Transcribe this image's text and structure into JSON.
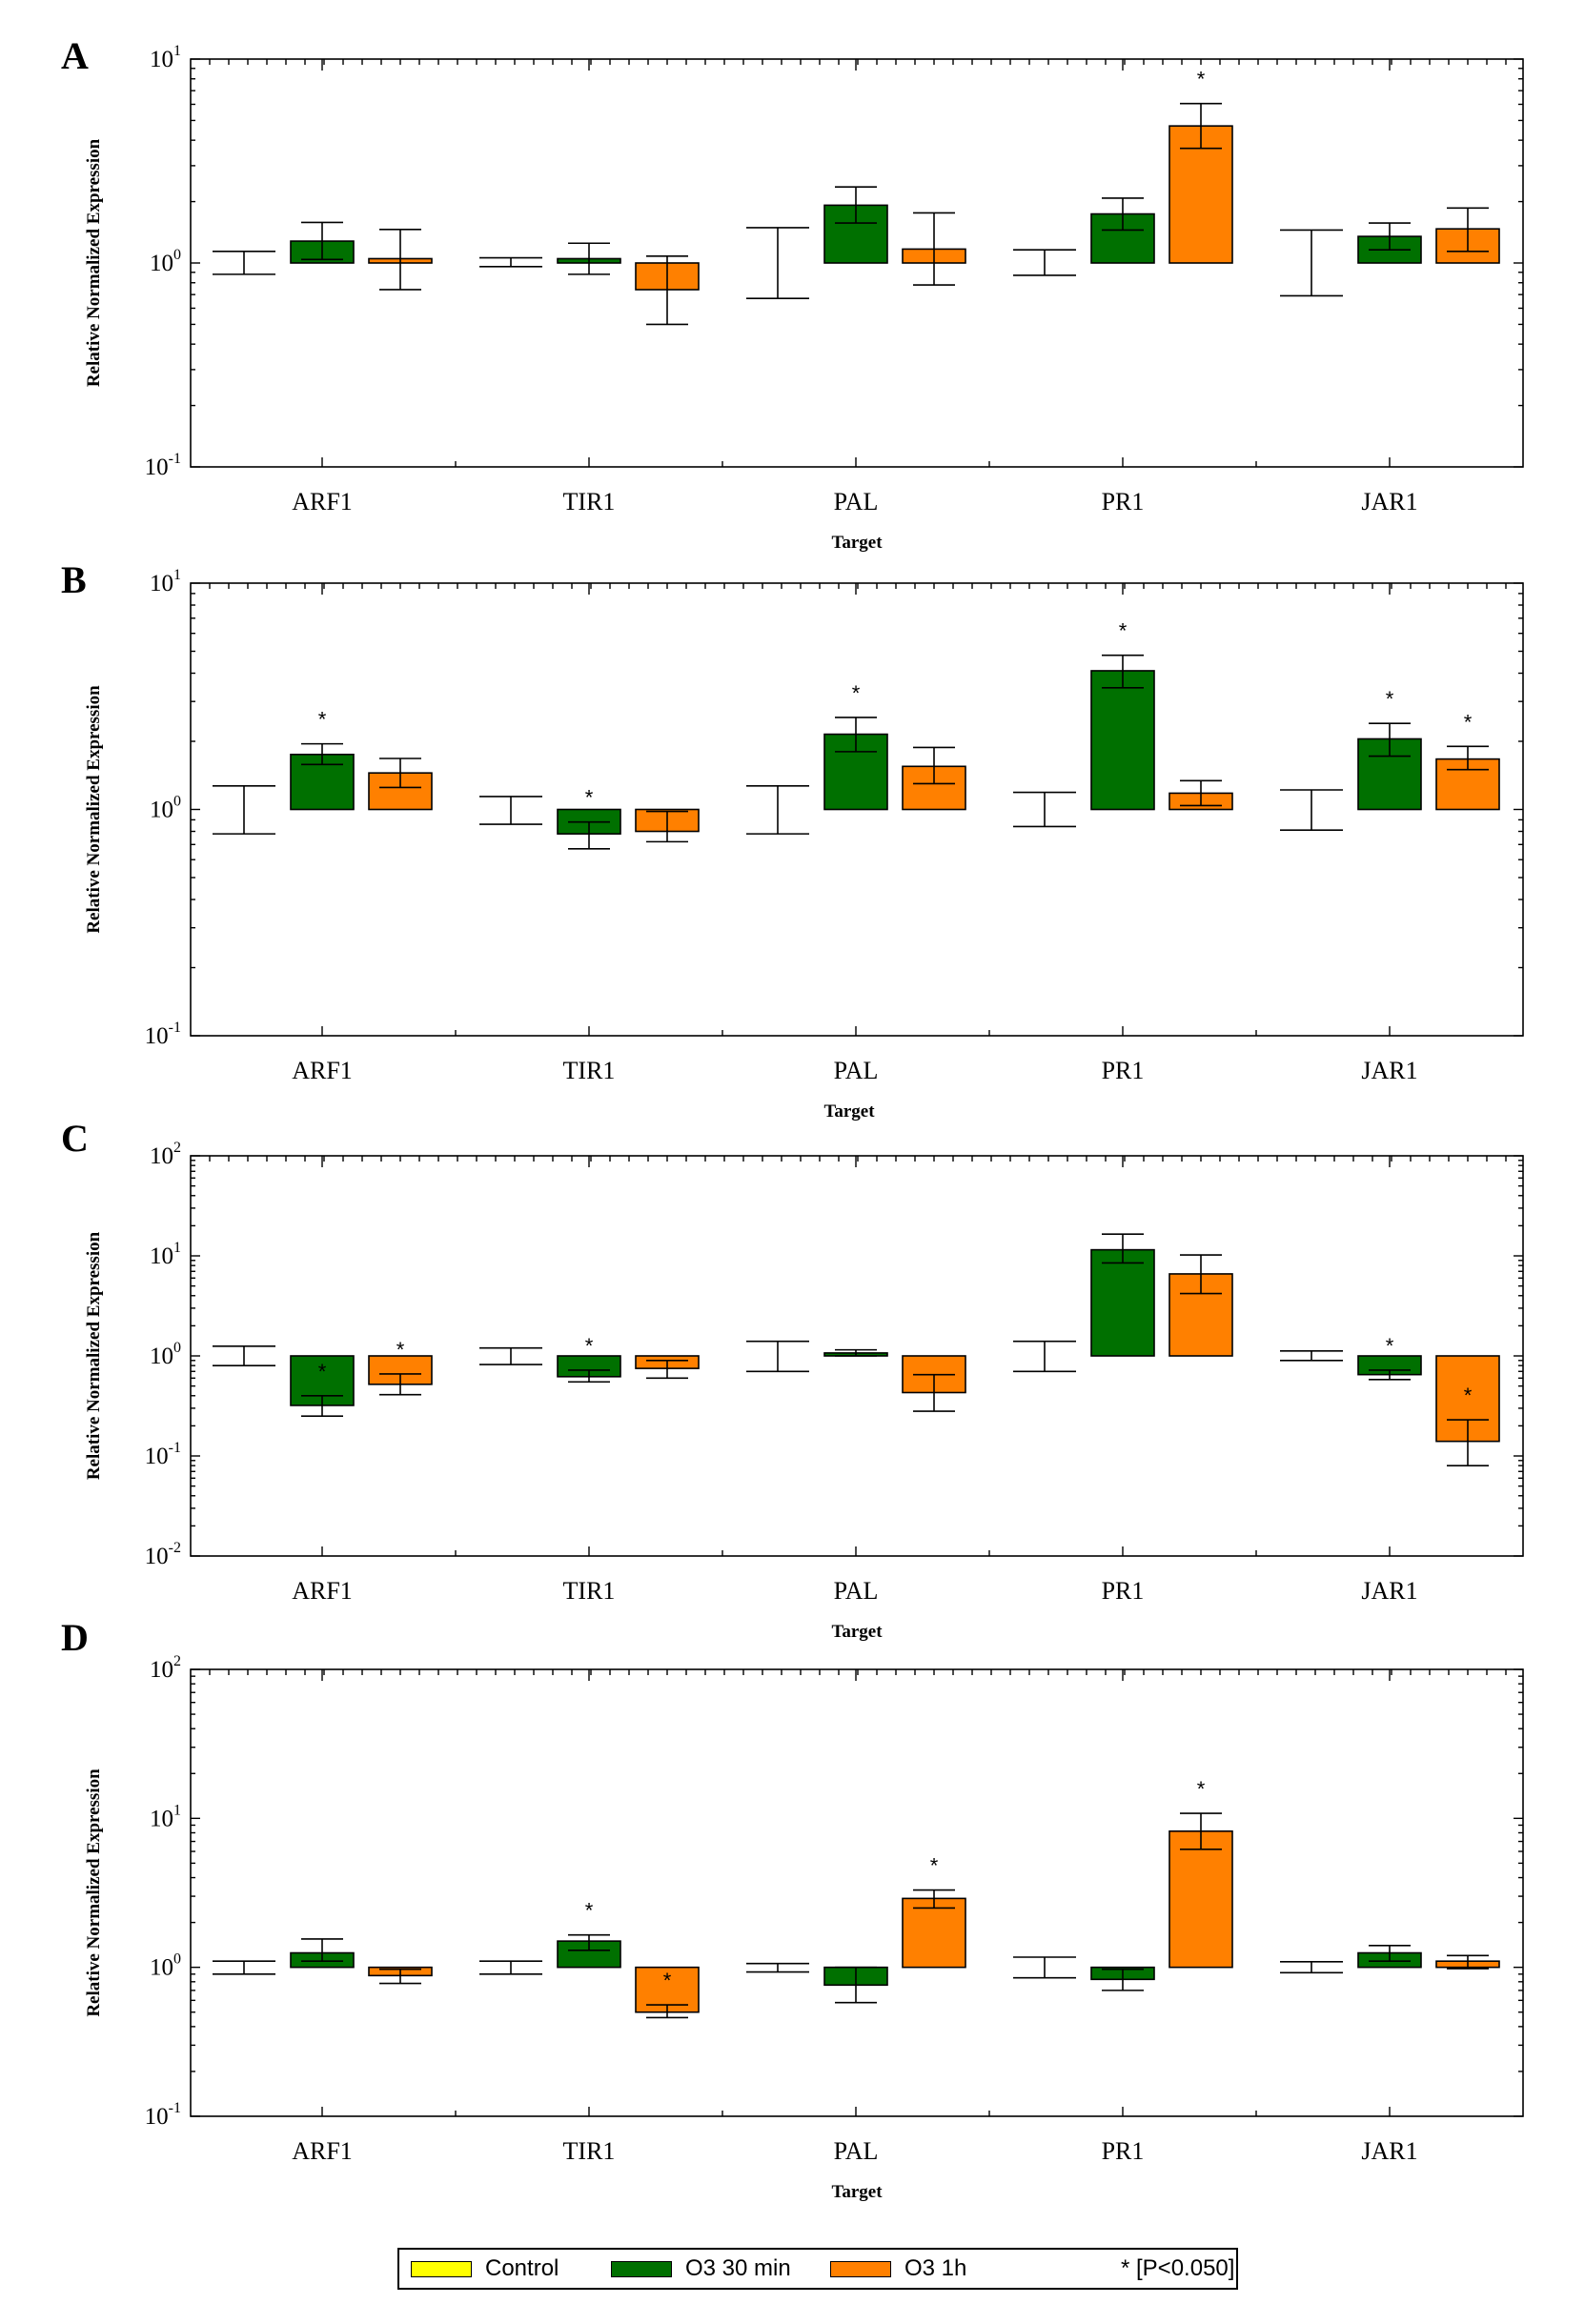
{
  "chart_data": [
    {
      "type": "boxplot",
      "panel": "A",
      "categories": [
        "ARF1",
        "TIR1",
        "PAL",
        "PR1",
        "JAR1"
      ],
      "xlabel": "Target",
      "ylabel": "Relative Normalized Expression",
      "yscale": "log",
      "ylim": [
        0.1,
        10
      ],
      "ytick_exponents": [
        -1,
        0,
        1
      ],
      "series": [
        {
          "name": "Control",
          "color": "#ffff00",
          "values": [
            {
              "value": 1.0,
              "err_low": 0.88,
              "err_high": 1.14,
              "star": false
            },
            {
              "value": 1.0,
              "err_low": 0.96,
              "err_high": 1.06,
              "star": false
            },
            {
              "value": 1.0,
              "err_low": 0.67,
              "err_high": 1.49,
              "star": false
            },
            {
              "value": 1.0,
              "err_low": 0.87,
              "err_high": 1.16,
              "star": false
            },
            {
              "value": 1.0,
              "err_low": 0.69,
              "err_high": 1.45,
              "star": false
            }
          ]
        },
        {
          "name": "O3 30 min",
          "color": "#007000",
          "values": [
            {
              "value": 1.28,
              "err_low": 1.04,
              "err_high": 1.58,
              "star": false
            },
            {
              "value": 1.05,
              "err_low": 0.88,
              "err_high": 1.25,
              "star": false
            },
            {
              "value": 1.92,
              "err_low": 1.57,
              "err_high": 2.36,
              "star": false
            },
            {
              "value": 1.74,
              "err_low": 1.45,
              "err_high": 2.08,
              "star": false
            },
            {
              "value": 1.35,
              "err_low": 1.16,
              "err_high": 1.57,
              "star": false
            }
          ]
        },
        {
          "name": "O3 1h",
          "color": "#ff8000",
          "values": [
            {
              "value": 1.05,
              "err_low": 0.74,
              "err_high": 1.46,
              "star": false
            },
            {
              "value": 0.74,
              "err_low": 0.5,
              "err_high": 1.08,
              "star": false
            },
            {
              "value": 1.17,
              "err_low": 0.78,
              "err_high": 1.76,
              "star": false
            },
            {
              "value": 4.7,
              "err_low": 3.65,
              "err_high": 6.05,
              "star": true
            },
            {
              "value": 1.47,
              "err_low": 1.14,
              "err_high": 1.86,
              "star": false
            }
          ]
        }
      ]
    },
    {
      "type": "boxplot",
      "panel": "B",
      "categories": [
        "ARF1",
        "TIR1",
        "PAL",
        "PR1",
        "JAR1"
      ],
      "xlabel": "Target",
      "ylabel": "Relative Normalized Expression",
      "yscale": "log",
      "ylim": [
        0.1,
        10
      ],
      "ytick_exponents": [
        -1,
        0,
        1
      ],
      "series": [
        {
          "name": "Control",
          "color": "#ffff00",
          "values": [
            {
              "value": 1.0,
              "err_low": 0.78,
              "err_high": 1.27,
              "star": false
            },
            {
              "value": 1.0,
              "err_low": 0.86,
              "err_high": 1.14,
              "star": false
            },
            {
              "value": 1.0,
              "err_low": 0.78,
              "err_high": 1.27,
              "star": false
            },
            {
              "value": 1.0,
              "err_low": 0.84,
              "err_high": 1.19,
              "star": false
            },
            {
              "value": 1.0,
              "err_low": 0.81,
              "err_high": 1.22,
              "star": false
            }
          ]
        },
        {
          "name": "O3 30 min",
          "color": "#007000",
          "values": [
            {
              "value": 1.75,
              "err_low": 1.58,
              "err_high": 1.95,
              "star": true
            },
            {
              "value": 0.78,
              "err_low": 0.67,
              "err_high": 0.88,
              "star": true
            },
            {
              "value": 2.15,
              "err_low": 1.8,
              "err_high": 2.55,
              "star": true
            },
            {
              "value": 4.1,
              "err_low": 3.45,
              "err_high": 4.8,
              "star": true
            },
            {
              "value": 2.05,
              "err_low": 1.72,
              "err_high": 2.4,
              "star": true
            }
          ]
        },
        {
          "name": "O3 1h",
          "color": "#ff8000",
          "values": [
            {
              "value": 1.45,
              "err_low": 1.25,
              "err_high": 1.68,
              "star": false
            },
            {
              "value": 0.8,
              "err_low": 0.72,
              "err_high": 0.98,
              "star": false
            },
            {
              "value": 1.55,
              "err_low": 1.3,
              "err_high": 1.88,
              "star": false
            },
            {
              "value": 1.18,
              "err_low": 1.04,
              "err_high": 1.34,
              "star": false
            },
            {
              "value": 1.67,
              "err_low": 1.5,
              "err_high": 1.9,
              "star": true
            }
          ]
        }
      ]
    },
    {
      "type": "boxplot",
      "panel": "C",
      "categories": [
        "ARF1",
        "TIR1",
        "PAL",
        "PR1",
        "JAR1"
      ],
      "xlabel": "Target",
      "ylabel": "Relative Normalized Expression",
      "yscale": "log",
      "ylim": [
        0.01,
        100
      ],
      "ytick_exponents": [
        -2,
        -1,
        0,
        1,
        2
      ],
      "series": [
        {
          "name": "Control",
          "color": "#ffff00",
          "values": [
            {
              "value": 1.0,
              "err_low": 0.8,
              "err_high": 1.25,
              "star": false
            },
            {
              "value": 1.0,
              "err_low": 0.82,
              "err_high": 1.2,
              "star": false
            },
            {
              "value": 1.0,
              "err_low": 0.7,
              "err_high": 1.4,
              "star": false
            },
            {
              "value": 1.0,
              "err_low": 0.7,
              "err_high": 1.4,
              "star": false
            },
            {
              "value": 1.0,
              "err_low": 0.9,
              "err_high": 1.12,
              "star": false
            }
          ]
        },
        {
          "name": "O3 30 min",
          "color": "#007000",
          "values": [
            {
              "value": 0.32,
              "err_low": 0.25,
              "err_high": 0.4,
              "star": true
            },
            {
              "value": 0.62,
              "err_low": 0.55,
              "err_high": 0.72,
              "star": true
            },
            {
              "value": 1.07,
              "err_low": 1.0,
              "err_high": 1.15,
              "star": false
            },
            {
              "value": 11.5,
              "err_low": 8.5,
              "err_high": 16.5,
              "star": false
            },
            {
              "value": 0.65,
              "err_low": 0.58,
              "err_high": 0.72,
              "star": true
            }
          ]
        },
        {
          "name": "O3 1h",
          "color": "#ff8000",
          "values": [
            {
              "value": 0.52,
              "err_low": 0.41,
              "err_high": 0.66,
              "star": true
            },
            {
              "value": 0.75,
              "err_low": 0.6,
              "err_high": 0.9,
              "star": false
            },
            {
              "value": 0.43,
              "err_low": 0.28,
              "err_high": 0.65,
              "star": false
            },
            {
              "value": 6.6,
              "err_low": 4.2,
              "err_high": 10.2,
              "star": false
            },
            {
              "value": 0.14,
              "err_low": 0.08,
              "err_high": 0.23,
              "star": true
            }
          ]
        }
      ]
    },
    {
      "type": "boxplot",
      "panel": "D",
      "categories": [
        "ARF1",
        "TIR1",
        "PAL",
        "PR1",
        "JAR1"
      ],
      "xlabel": "Target",
      "ylabel": "Relative Normalized Expression",
      "yscale": "log",
      "ylim": [
        0.1,
        100
      ],
      "ytick_exponents": [
        -1,
        0,
        1,
        2
      ],
      "series": [
        {
          "name": "Control",
          "color": "#ffff00",
          "values": [
            {
              "value": 1.0,
              "err_low": 0.9,
              "err_high": 1.1,
              "star": false
            },
            {
              "value": 1.0,
              "err_low": 0.9,
              "err_high": 1.1,
              "star": false
            },
            {
              "value": 1.0,
              "err_low": 0.93,
              "err_high": 1.06,
              "star": false
            },
            {
              "value": 1.0,
              "err_low": 0.85,
              "err_high": 1.17,
              "star": false
            },
            {
              "value": 1.0,
              "err_low": 0.92,
              "err_high": 1.09,
              "star": false
            }
          ]
        },
        {
          "name": "O3 30 min",
          "color": "#007000",
          "values": [
            {
              "value": 1.25,
              "err_low": 1.1,
              "err_high": 1.55,
              "star": false
            },
            {
              "value": 1.5,
              "err_low": 1.3,
              "err_high": 1.65,
              "star": true
            },
            {
              "value": 0.76,
              "err_low": 0.58,
              "err_high": 1.0,
              "star": false
            },
            {
              "value": 0.83,
              "err_low": 0.7,
              "err_high": 0.97,
              "star": false
            },
            {
              "value": 1.25,
              "err_low": 1.1,
              "err_high": 1.4,
              "star": false
            }
          ]
        },
        {
          "name": "O3 1h",
          "color": "#ff8000",
          "values": [
            {
              "value": 0.88,
              "err_low": 0.78,
              "err_high": 0.97,
              "star": false
            },
            {
              "value": 0.5,
              "err_low": 0.46,
              "err_high": 0.56,
              "star": true
            },
            {
              "value": 2.9,
              "err_low": 2.5,
              "err_high": 3.3,
              "star": true
            },
            {
              "value": 8.2,
              "err_low": 6.2,
              "err_high": 10.8,
              "star": true
            },
            {
              "value": 1.1,
              "err_low": 0.98,
              "err_high": 1.2,
              "star": false
            }
          ]
        }
      ]
    }
  ],
  "legend": {
    "items": [
      {
        "label": "Control",
        "color": "#ffff00"
      },
      {
        "label": "O3 30 min",
        "color": "#007000"
      },
      {
        "label": "O3 1h",
        "color": "#ff8000"
      }
    ],
    "note": "* [P<0.050]"
  },
  "star_symbol": "*"
}
